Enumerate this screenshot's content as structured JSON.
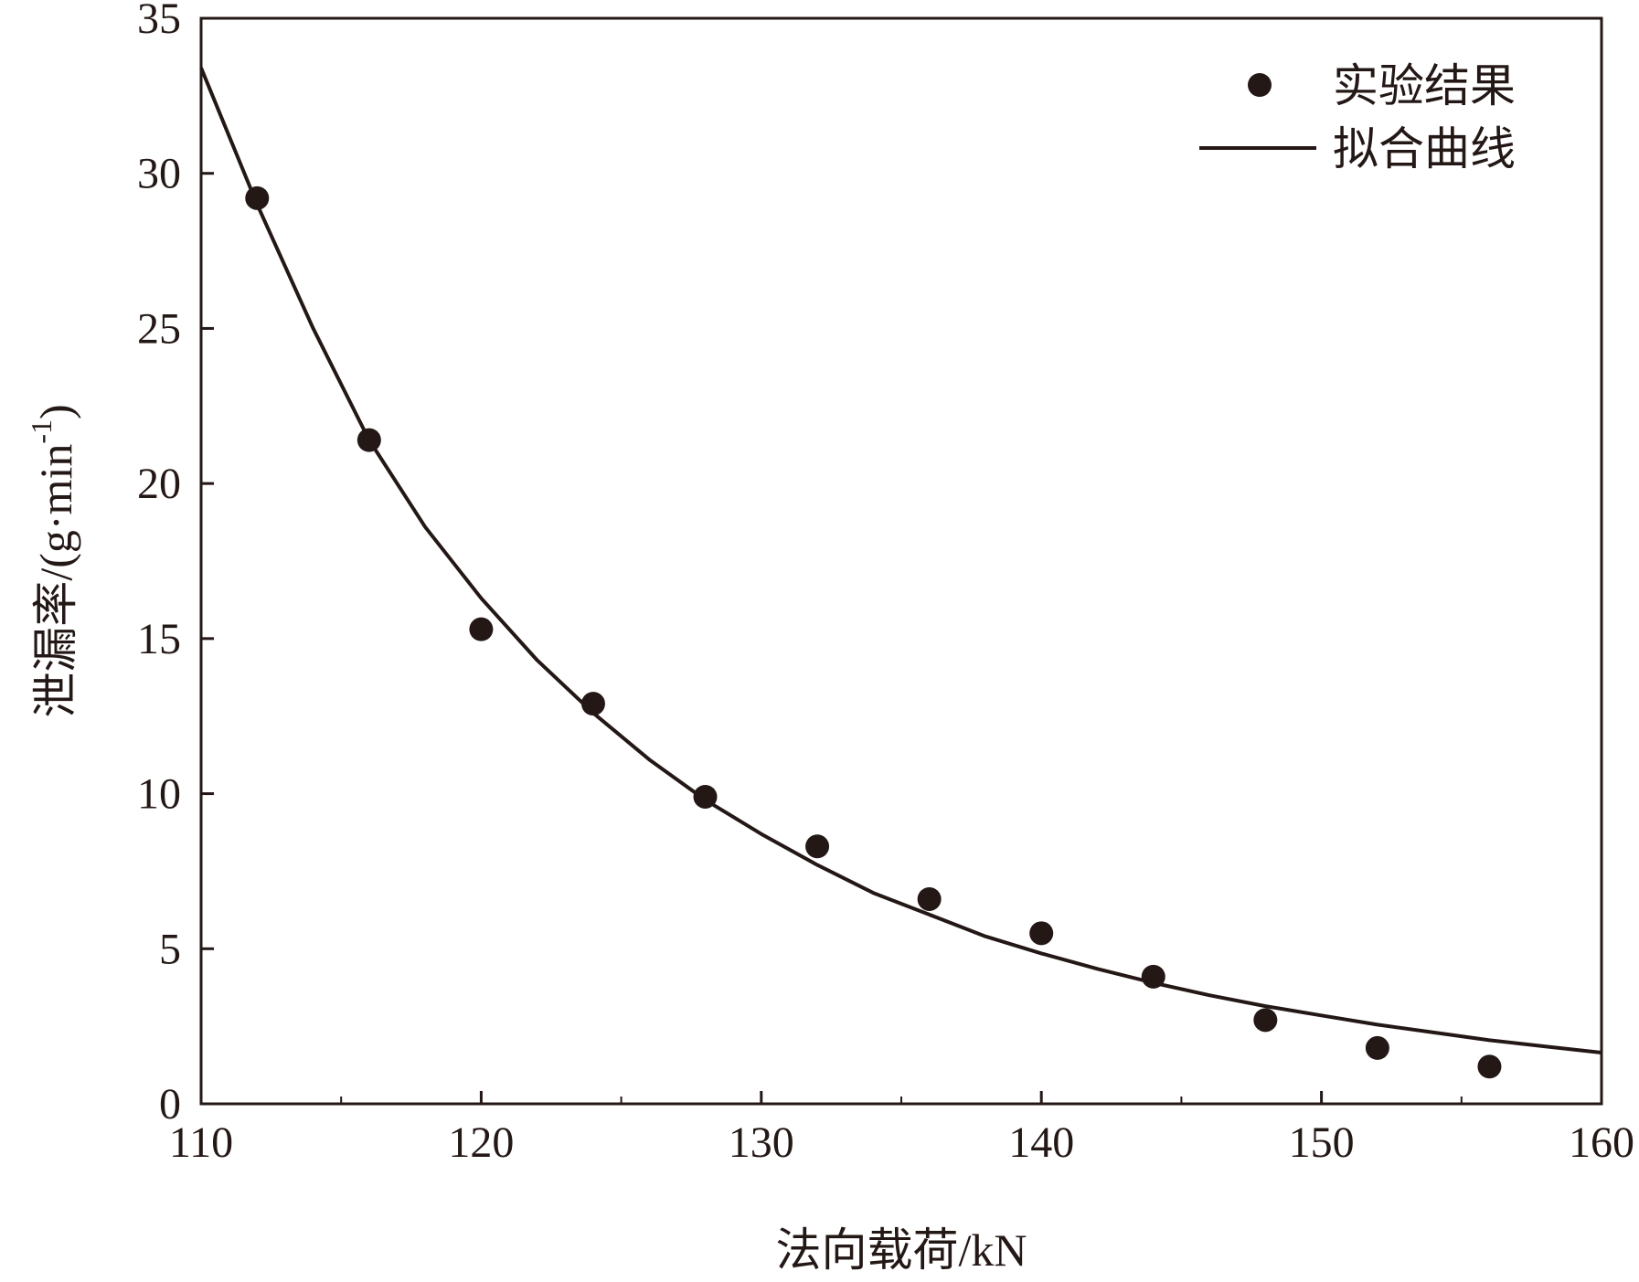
{
  "chart_data": {
    "type": "scatter",
    "xlabel": "法向载荷/kN",
    "ylabel": "泄漏率/(g·min",
    "ylabel_superscript": "-1",
    "ylabel_suffix": ")",
    "xlim": [
      110,
      160
    ],
    "ylim": [
      0,
      35
    ],
    "xticks": [
      "110",
      "120",
      "130",
      "140",
      "150",
      "160"
    ],
    "yticks": [
      "0",
      "5",
      "10",
      "15",
      "20",
      "25",
      "30",
      "35"
    ],
    "grid": false,
    "legend_position": "top-right",
    "series": [
      {
        "name": "实验结果",
        "kind": "scatter",
        "color": "#231815",
        "points": [
          {
            "x": 112,
            "y": 29.2
          },
          {
            "x": 116,
            "y": 21.4
          },
          {
            "x": 120,
            "y": 15.3
          },
          {
            "x": 124,
            "y": 12.9
          },
          {
            "x": 128,
            "y": 9.9
          },
          {
            "x": 132,
            "y": 8.3
          },
          {
            "x": 136,
            "y": 6.6
          },
          {
            "x": 140,
            "y": 5.5
          },
          {
            "x": 144,
            "y": 4.1
          },
          {
            "x": 148,
            "y": 2.7
          },
          {
            "x": 152,
            "y": 1.8
          },
          {
            "x": 156,
            "y": 1.2
          }
        ]
      },
      {
        "name": "拟合曲线",
        "kind": "line",
        "color": "#231815",
        "points": [
          {
            "x": 110,
            "y": 33.4
          },
          {
            "x": 112,
            "y": 29.0
          },
          {
            "x": 114,
            "y": 25.0
          },
          {
            "x": 116,
            "y": 21.4
          },
          {
            "x": 118,
            "y": 18.6
          },
          {
            "x": 120,
            "y": 16.3
          },
          {
            "x": 122,
            "y": 14.3
          },
          {
            "x": 124,
            "y": 12.6
          },
          {
            "x": 126,
            "y": 11.1
          },
          {
            "x": 128,
            "y": 9.8
          },
          {
            "x": 130,
            "y": 8.7
          },
          {
            "x": 132,
            "y": 7.7
          },
          {
            "x": 134,
            "y": 6.8
          },
          {
            "x": 136,
            "y": 6.1
          },
          {
            "x": 138,
            "y": 5.4
          },
          {
            "x": 140,
            "y": 4.85
          },
          {
            "x": 142,
            "y": 4.35
          },
          {
            "x": 144,
            "y": 3.9
          },
          {
            "x": 146,
            "y": 3.5
          },
          {
            "x": 148,
            "y": 3.15
          },
          {
            "x": 150,
            "y": 2.85
          },
          {
            "x": 152,
            "y": 2.55
          },
          {
            "x": 154,
            "y": 2.3
          },
          {
            "x": 156,
            "y": 2.05
          },
          {
            "x": 158,
            "y": 1.85
          },
          {
            "x": 160,
            "y": 1.65
          }
        ]
      }
    ]
  }
}
